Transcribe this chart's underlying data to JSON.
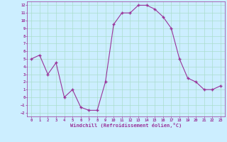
{
  "x": [
    0,
    1,
    2,
    3,
    4,
    5,
    6,
    7,
    8,
    9,
    10,
    11,
    12,
    13,
    14,
    15,
    16,
    17,
    18,
    19,
    20,
    21,
    22,
    23
  ],
  "y": [
    5,
    5.5,
    3,
    4.5,
    0,
    1,
    -1.3,
    -1.7,
    -1.7,
    2,
    9.5,
    11,
    11,
    12,
    12,
    11.5,
    10.5,
    9,
    5,
    2.5,
    2,
    1,
    1,
    1.5
  ],
  "line_color": "#993399",
  "marker_color": "#993399",
  "bg_color": "#cceeff",
  "grid_color": "#aaddcc",
  "xlabel": "Windchill (Refroidissement éolien,°C)",
  "xlabel_color": "#993399",
  "tick_color": "#993399",
  "ylim": [
    -2.5,
    12.5
  ],
  "xlim": [
    -0.5,
    23.5
  ],
  "yticks": [
    -2,
    -1,
    0,
    1,
    2,
    3,
    4,
    5,
    6,
    7,
    8,
    9,
    10,
    11,
    12
  ],
  "xticks": [
    0,
    1,
    2,
    3,
    4,
    5,
    6,
    7,
    8,
    9,
    10,
    11,
    12,
    13,
    14,
    15,
    16,
    17,
    18,
    19,
    20,
    21,
    22,
    23
  ]
}
